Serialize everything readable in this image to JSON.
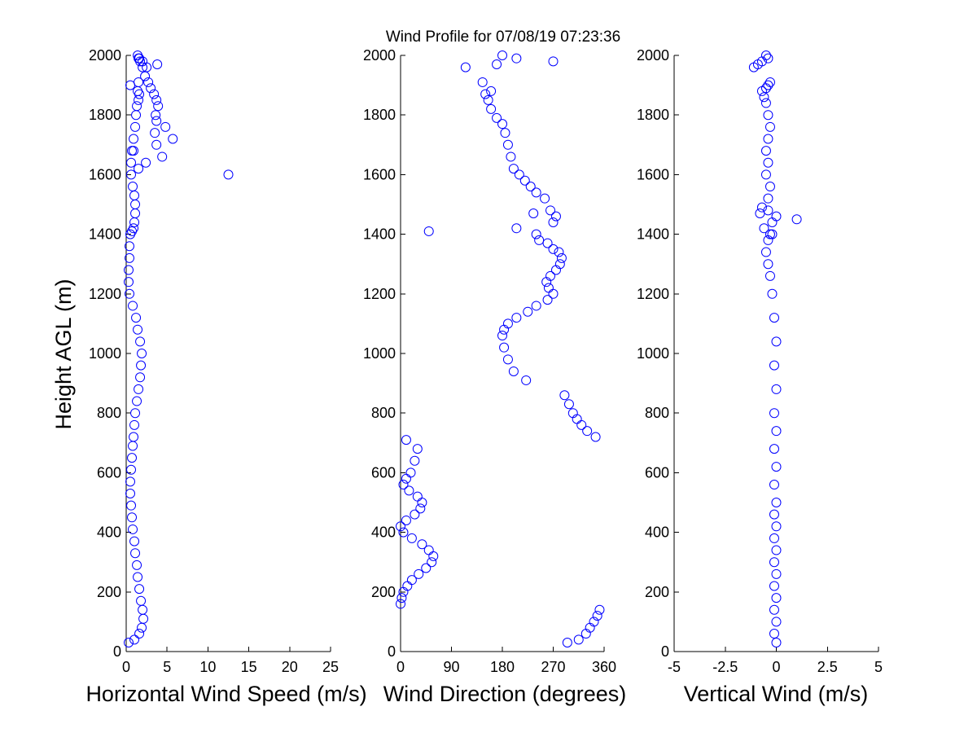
{
  "figure": {
    "title": "Wind Profile for  07/08/19 07:23:36",
    "ylabel": "Height AGL (m)"
  },
  "chart_data": [
    {
      "type": "scatter",
      "xlabel": "Horizontal Wind Speed (m/s)",
      "xlim": [
        0,
        25
      ],
      "ylim": [
        0,
        2000
      ],
      "xticks": [
        "0",
        "5",
        "10",
        "15",
        "20",
        "25"
      ],
      "yticks": [
        "0",
        "200",
        "400",
        "600",
        "800",
        "1000",
        "1200",
        "1400",
        "1600",
        "1800",
        "2000"
      ],
      "series": [
        {
          "marker_color": "#0000ff",
          "x": [
            0.3,
            1.0,
            1.6,
            1.9,
            2.1,
            2.0,
            1.8,
            1.6,
            1.4,
            1.3,
            1.1,
            1.0,
            0.8,
            0.7,
            0.6,
            0.5,
            0.5,
            0.6,
            0.7,
            0.8,
            0.9,
            1.0,
            1.1,
            1.3,
            1.5,
            1.7,
            1.8,
            1.9,
            1.7,
            1.4,
            1.2,
            0.8,
            0.4,
            0.3,
            0.3,
            0.4,
            0.4,
            0.5,
            0.7,
            0.9,
            1.0,
            1.1,
            1.1,
            1.0,
            0.8,
            0.6,
            0.6,
            0.7,
            0.9,
            1.1,
            1.2,
            1.3,
            1.5,
            1.6,
            1.4,
            0.5,
            1.5,
            2.5,
            3.8,
            2.0,
            1.6,
            1.4,
            1.5,
            1.7,
            2.0,
            2.3,
            2.7,
            3.0,
            3.4,
            3.7,
            3.9,
            3.6,
            3.7,
            4.8,
            3.5,
            5.7,
            3.7,
            0.9,
            4.4,
            2.4,
            1.5,
            12.5
          ],
          "y": [
            30,
            40,
            60,
            80,
            110,
            140,
            170,
            210,
            250,
            290,
            330,
            370,
            410,
            450,
            490,
            530,
            570,
            610,
            650,
            690,
            720,
            760,
            800,
            840,
            880,
            920,
            960,
            1000,
            1040,
            1080,
            1120,
            1160,
            1200,
            1240,
            1280,
            1320,
            1360,
            1400,
            1410,
            1420,
            1440,
            1470,
            1500,
            1530,
            1560,
            1600,
            1640,
            1680,
            1720,
            1760,
            1800,
            1830,
            1850,
            1870,
            1880,
            1900,
            1910,
            1960,
            1970,
            1980,
            1990,
            2000,
            1990,
            1980,
            1960,
            1930,
            1910,
            1890,
            1870,
            1850,
            1830,
            1800,
            1780,
            1760,
            1740,
            1720,
            1700,
            1680,
            1660,
            1640,
            1620,
            1600
          ]
        }
      ]
    },
    {
      "type": "scatter",
      "xlabel": "Wind Direction (degrees)",
      "xlim": [
        0,
        360
      ],
      "ylim": [
        0,
        2000
      ],
      "xticks": [
        "0",
        "90",
        "180",
        "270",
        "360"
      ],
      "yticks": [
        "0",
        "200",
        "400",
        "600",
        "800",
        "1000",
        "1200",
        "1400",
        "1600",
        "1800",
        "2000"
      ],
      "series": [
        {
          "marker_color": "#0000ff",
          "x": [
            295,
            315,
            328,
            335,
            342,
            348,
            352,
            0,
            2,
            5,
            12,
            20,
            32,
            45,
            55,
            58,
            50,
            38,
            20,
            5,
            0,
            10,
            25,
            35,
            38,
            30,
            15,
            5,
            10,
            18,
            25,
            30,
            10,
            345,
            330,
            320,
            312,
            305,
            298,
            290,
            222,
            200,
            190,
            183,
            180,
            183,
            190,
            205,
            225,
            240,
            260,
            270,
            262,
            258,
            265,
            275,
            282,
            285,
            280,
            270,
            260,
            245,
            240,
            270,
            205,
            50,
            235,
            265,
            275,
            255,
            240,
            230,
            220,
            210,
            200,
            195,
            190,
            185,
            180,
            170,
            160,
            155,
            150,
            160,
            145,
            170,
            205,
            180,
            115,
            270
          ],
          "y": [
            30,
            40,
            60,
            80,
            100,
            120,
            140,
            160,
            180,
            200,
            220,
            240,
            260,
            280,
            300,
            320,
            340,
            360,
            380,
            400,
            420,
            440,
            460,
            480,
            500,
            520,
            540,
            560,
            580,
            600,
            640,
            680,
            710,
            720,
            740,
            760,
            780,
            800,
            830,
            860,
            910,
            940,
            980,
            1020,
            1060,
            1080,
            1100,
            1120,
            1140,
            1160,
            1180,
            1200,
            1220,
            1240,
            1260,
            1280,
            1300,
            1320,
            1340,
            1350,
            1370,
            1380,
            1400,
            1440,
            1420,
            1410,
            1470,
            1480,
            1460,
            1520,
            1540,
            1560,
            1580,
            1600,
            1620,
            1660,
            1700,
            1740,
            1770,
            1790,
            1820,
            1850,
            1870,
            1880,
            1910,
            1970,
            1990,
            2000,
            1960,
            1980
          ]
        }
      ]
    },
    {
      "type": "scatter",
      "xlabel": "Vertical Wind (m/s)",
      "xlim": [
        -5,
        5
      ],
      "xticks": [
        "-5",
        "-2.5",
        "0",
        "2.5",
        "5"
      ],
      "ylim": [
        0,
        2000
      ],
      "yticks": [
        "0",
        "200",
        "400",
        "600",
        "800",
        "1000",
        "1200",
        "1400",
        "1600",
        "1800",
        "2000"
      ],
      "series": [
        {
          "marker_color": "#0000ff",
          "x": [
            0.0,
            -0.1,
            0.0,
            -0.1,
            0.0,
            -0.1,
            0.0,
            -0.1,
            0.0,
            -0.1,
            0.0,
            -0.1,
            0.0,
            -0.1,
            0.0,
            -0.1,
            0.0,
            -0.1,
            0.0,
            -0.1,
            0.0,
            -0.1,
            -0.2,
            -0.3,
            -0.4,
            -0.5,
            -0.4,
            -0.3,
            -0.6,
            -0.8,
            -0.4,
            -0.2,
            0.0,
            1.0,
            -0.7,
            -0.4,
            -0.3,
            -0.5,
            -0.4,
            -0.5,
            -0.4,
            -0.3,
            -0.4,
            -0.5,
            -0.6,
            -0.7,
            -0.5,
            -0.4,
            -0.3,
            -1.1,
            -0.9,
            -0.7,
            -0.4,
            -0.5,
            -0.2
          ],
          "y": [
            30,
            60,
            100,
            140,
            180,
            220,
            260,
            300,
            340,
            380,
            420,
            460,
            500,
            560,
            620,
            680,
            740,
            800,
            880,
            960,
            1040,
            1120,
            1200,
            1260,
            1300,
            1340,
            1380,
            1400,
            1420,
            1470,
            1480,
            1440,
            1460,
            1450,
            1490,
            1520,
            1560,
            1600,
            1640,
            1680,
            1720,
            1760,
            1800,
            1840,
            1860,
            1880,
            1890,
            1900,
            1910,
            1960,
            1970,
            1980,
            1990,
            2000,
            1400
          ]
        }
      ]
    }
  ]
}
